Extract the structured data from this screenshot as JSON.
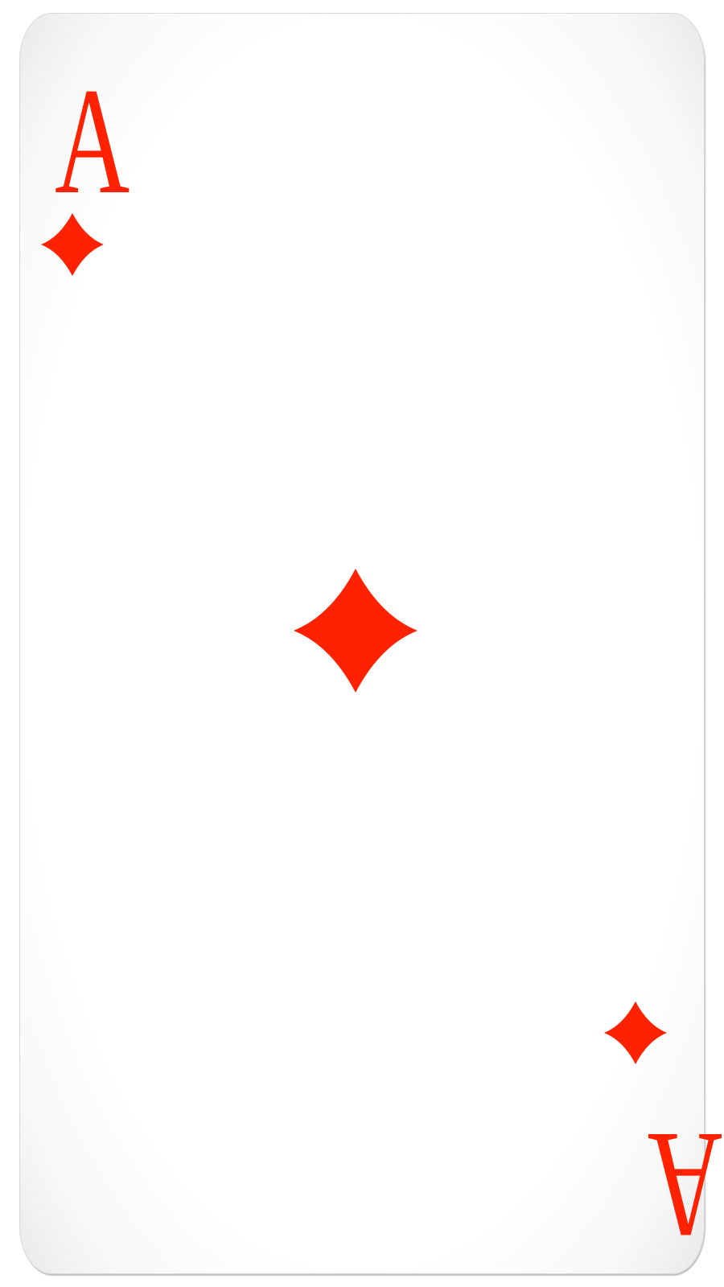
{
  "card": {
    "rank": "A",
    "suit": "diamonds",
    "suit_icon": "diamond-icon",
    "color": "#ff2200",
    "background": "#ffffff"
  }
}
